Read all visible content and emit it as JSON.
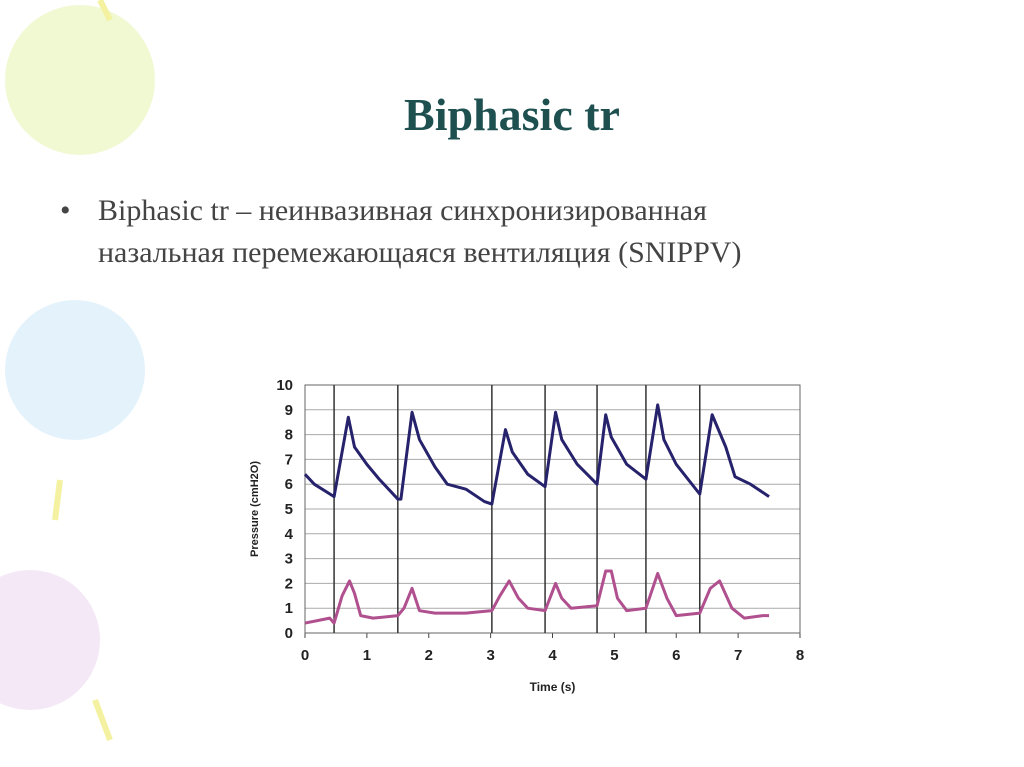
{
  "title": "Biphasic tr",
  "bullet": [
    "Biphasic  tr – неинвазивная синхронизированная",
    "назальная перемежающаяся вентиляция (SNIPPV)"
  ],
  "chart_data": {
    "type": "line",
    "xlabel": "Time (s)",
    "ylabel": "Pressure (cmH2O)",
    "xlim": [
      0,
      8
    ],
    "xticks": [
      0,
      1,
      2,
      3,
      4,
      5,
      6,
      7,
      8
    ],
    "ylim": [
      0,
      10
    ],
    "yticks": [
      0,
      1,
      2,
      3,
      4,
      5,
      6,
      7,
      8,
      9,
      10
    ],
    "grid": true,
    "vlines": [
      0.47,
      1.5,
      3.02,
      3.88,
      4.72,
      5.51,
      6.38
    ],
    "series": [
      {
        "color": "#26226b",
        "x": [
          0,
          0.15,
          0.47,
          0.7,
          0.8,
          1.0,
          1.2,
          1.5,
          1.55,
          1.73,
          1.85,
          2.1,
          2.3,
          2.6,
          2.9,
          3.02,
          3.24,
          3.35,
          3.6,
          3.88,
          4.05,
          4.15,
          4.4,
          4.72,
          4.86,
          4.95,
          5.2,
          5.51,
          5.7,
          5.8,
          6.0,
          6.38,
          6.58,
          6.8,
          6.95,
          7.2,
          7.5
        ],
        "values": [
          6.4,
          6.0,
          5.5,
          8.7,
          7.5,
          6.8,
          6.2,
          5.4,
          5.4,
          8.9,
          7.8,
          6.7,
          6.0,
          5.8,
          5.3,
          5.2,
          8.2,
          7.3,
          6.4,
          5.9,
          8.9,
          7.8,
          6.8,
          6.0,
          8.8,
          7.9,
          6.8,
          6.2,
          9.2,
          7.8,
          6.8,
          5.6,
          8.8,
          7.5,
          6.3,
          6.0,
          5.5
        ]
      },
      {
        "color": "#b0508f",
        "x": [
          0,
          0.2,
          0.4,
          0.47,
          0.6,
          0.72,
          0.8,
          0.9,
          1.1,
          1.5,
          1.6,
          1.73,
          1.85,
          2.1,
          2.6,
          3.02,
          3.15,
          3.3,
          3.45,
          3.6,
          3.88,
          4.05,
          4.15,
          4.3,
          4.72,
          4.86,
          4.95,
          5.05,
          5.2,
          5.51,
          5.7,
          5.85,
          6.0,
          6.38,
          6.55,
          6.7,
          6.9,
          7.1,
          7.4,
          7.5
        ],
        "values": [
          0.4,
          0.5,
          0.6,
          0.4,
          1.5,
          2.1,
          1.6,
          0.7,
          0.6,
          0.7,
          1.0,
          1.8,
          0.9,
          0.8,
          0.8,
          0.9,
          1.5,
          2.1,
          1.4,
          1.0,
          0.9,
          2.0,
          1.4,
          1.0,
          1.1,
          2.5,
          2.5,
          1.4,
          0.9,
          1.0,
          2.4,
          1.4,
          0.7,
          0.8,
          1.8,
          2.1,
          1.0,
          0.6,
          0.7,
          0.7
        ]
      }
    ]
  }
}
